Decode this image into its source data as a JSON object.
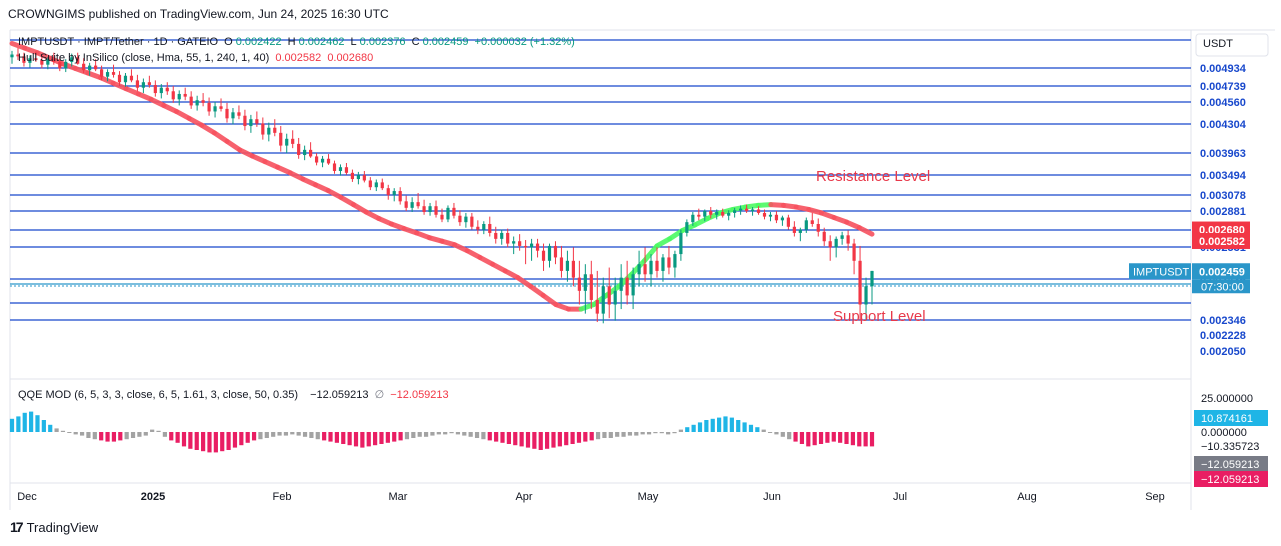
{
  "header": {
    "published_by": "CROWNGIMS published on TradingView.com, Jun 24, 2025 16:30 UTC"
  },
  "footer": {
    "brand": "TradingView",
    "mark": "17"
  },
  "legend": {
    "symbol": "IMPTUSDT · IMPT/Tether · 1D · GATEIO",
    "o_label": "O",
    "o_value": "0.002422",
    "h_label": "H",
    "h_value": "0.002462",
    "l_label": "L",
    "l_value": "0.002376",
    "c_label": "C",
    "c_value": "0.002459",
    "change": "+0.000032 (+1.32%)",
    "hull_label": "Hull Suite by InSilico (close, Hma, 55, 1, 240, 1, 40)",
    "hull_v1": "0.002582",
    "hull_v2": "0.002680",
    "qqe_label": "QQE MOD (6, 5, 3, 3, close, 6, 5, 1.61, 3, close, 50, 0.35)",
    "qqe_v1": "−12.059213",
    "qqe_sep": "∅",
    "qqe_v2": "−12.059213"
  },
  "colors": {
    "level_line": "#1848cc",
    "candle_up": "#089981",
    "candle_down": "#f23645",
    "hull_up": "#4cfa63",
    "hull_down": "#f7525f",
    "annotation": "#e8394a",
    "qqe_blue": "#1fb5e6",
    "qqe_grey": "#a3a3a3",
    "qqe_pink": "#e91e63",
    "current_price_tag": "#2a96c9"
  },
  "chart_data": {
    "type": "candlestick",
    "symbol": "IMPTUSDT",
    "currency_label": "USDT",
    "price_axis_labels": [
      "0.004934",
      "0.004739",
      "0.004560",
      "0.004304",
      "0.003963",
      "0.003494",
      "0.003078",
      "0.002881",
      "0.002675",
      "0.002531",
      "0.002436",
      "0.002346",
      "0.002228",
      "0.002050"
    ],
    "price_axis_tags": [
      {
        "value": "0.002680",
        "color": "#f23645"
      },
      {
        "value": "0.002582",
        "color": "#f23645"
      },
      {
        "value": "0.002459",
        "color": "#2a96c9",
        "symbol": "IMPTUSDT",
        "countdown": "07:30:00"
      }
    ],
    "horizontal_levels": [
      0.004934,
      0.004739,
      0.00456,
      0.004304,
      0.003963,
      0.003494,
      0.003078,
      0.002881,
      0.002675,
      0.002531,
      0.002436,
      0.002346,
      0.002228,
      0.00205
    ],
    "annotations": [
      {
        "text": "Resistance Level"
      },
      {
        "text": "Support Level"
      }
    ],
    "x_labels": [
      "Dec",
      "2025",
      "Feb",
      "Mar",
      "Apr",
      "May",
      "Jun",
      "Jul",
      "Aug",
      "Sep"
    ],
    "candles": [
      [
        0.00505,
        0.00512,
        0.00498,
        0.00508
      ],
      [
        0.00508,
        0.00515,
        0.00502,
        0.00506
      ],
      [
        0.00506,
        0.0051,
        0.00495,
        0.00499
      ],
      [
        0.00499,
        0.00507,
        0.00494,
        0.00504
      ],
      [
        0.00504,
        0.00511,
        0.005,
        0.00502
      ],
      [
        0.00502,
        0.00508,
        0.00493,
        0.00497
      ],
      [
        0.00497,
        0.00505,
        0.00492,
        0.00503
      ],
      [
        0.00503,
        0.0051,
        0.00497,
        0.005
      ],
      [
        0.005,
        0.00506,
        0.0049,
        0.00493
      ],
      [
        0.00493,
        0.00503,
        0.00489,
        0.005
      ],
      [
        0.005,
        0.00509,
        0.00495,
        0.00505
      ],
      [
        0.00505,
        0.0051,
        0.00497,
        0.00498
      ],
      [
        0.00498,
        0.00504,
        0.00488,
        0.00491
      ],
      [
        0.00491,
        0.00499,
        0.00485,
        0.00496
      ],
      [
        0.00496,
        0.00503,
        0.0049,
        0.00492
      ],
      [
        0.00492,
        0.00496,
        0.0048,
        0.00484
      ],
      [
        0.00484,
        0.00492,
        0.00479,
        0.00489
      ],
      [
        0.00489,
        0.00497,
        0.00483,
        0.00486
      ],
      [
        0.00486,
        0.0049,
        0.00474,
        0.00478
      ],
      [
        0.00478,
        0.00488,
        0.00473,
        0.00485
      ],
      [
        0.00485,
        0.00492,
        0.00478,
        0.0048
      ],
      [
        0.0048,
        0.00486,
        0.00468,
        0.00472
      ],
      [
        0.00472,
        0.00482,
        0.00466,
        0.00478
      ],
      [
        0.00478,
        0.00485,
        0.00472,
        0.00475
      ],
      [
        0.00475,
        0.0048,
        0.00462,
        0.00466
      ],
      [
        0.00466,
        0.00476,
        0.0046,
        0.00472
      ],
      [
        0.00472,
        0.00478,
        0.00464,
        0.00468
      ],
      [
        0.00468,
        0.00474,
        0.00455,
        0.00459
      ],
      [
        0.00459,
        0.00469,
        0.00452,
        0.00465
      ],
      [
        0.00465,
        0.00472,
        0.00458,
        0.00462
      ],
      [
        0.00462,
        0.00468,
        0.00448,
        0.00452
      ],
      [
        0.00452,
        0.00463,
        0.00446,
        0.00458
      ],
      [
        0.00458,
        0.00466,
        0.00451,
        0.00455
      ],
      [
        0.00455,
        0.00461,
        0.0044,
        0.00445
      ],
      [
        0.00445,
        0.00456,
        0.00438,
        0.00451
      ],
      [
        0.00451,
        0.0046,
        0.00445,
        0.00448
      ],
      [
        0.00448,
        0.00455,
        0.00432,
        0.00437
      ],
      [
        0.00437,
        0.00449,
        0.0043,
        0.00444
      ],
      [
        0.00444,
        0.00452,
        0.00436,
        0.0044
      ],
      [
        0.0044,
        0.00447,
        0.00423,
        0.00428
      ],
      [
        0.00428,
        0.00441,
        0.0042,
        0.00436
      ],
      [
        0.00436,
        0.00445,
        0.00427,
        0.00431
      ],
      [
        0.00431,
        0.00438,
        0.00412,
        0.00418
      ],
      [
        0.00418,
        0.00432,
        0.0041,
        0.00426
      ],
      [
        0.00426,
        0.00436,
        0.00416,
        0.0042
      ],
      [
        0.0042,
        0.00428,
        0.00398,
        0.00405
      ],
      [
        0.00405,
        0.00419,
        0.00396,
        0.00413
      ],
      [
        0.00413,
        0.00423,
        0.00402,
        0.00407
      ],
      [
        0.00407,
        0.00414,
        0.00384,
        0.00392
      ],
      [
        0.00392,
        0.00405,
        0.00381,
        0.004
      ],
      [
        0.004,
        0.00409,
        0.00386,
        0.00389
      ],
      [
        0.00389,
        0.00396,
        0.0037,
        0.00376
      ],
      [
        0.00376,
        0.0039,
        0.00366,
        0.00384
      ],
      [
        0.00384,
        0.00394,
        0.00371,
        0.00374
      ],
      [
        0.00374,
        0.0038,
        0.00352,
        0.00358
      ],
      [
        0.00358,
        0.00372,
        0.00348,
        0.00366
      ],
      [
        0.00366,
        0.00375,
        0.0035,
        0.00354
      ],
      [
        0.00354,
        0.00361,
        0.00335,
        0.00341
      ],
      [
        0.00341,
        0.00356,
        0.0033,
        0.00349
      ],
      [
        0.00349,
        0.00358,
        0.00334,
        0.00338
      ],
      [
        0.00338,
        0.00345,
        0.00318,
        0.00324
      ],
      [
        0.00324,
        0.0034,
        0.00316,
        0.00334
      ],
      [
        0.00334,
        0.00342,
        0.00318,
        0.00322
      ],
      [
        0.00322,
        0.00329,
        0.00302,
        0.00308
      ],
      [
        0.00308,
        0.00322,
        0.003,
        0.00316
      ],
      [
        0.00316,
        0.00324,
        0.00296,
        0.003
      ],
      [
        0.003,
        0.00307,
        0.00288,
        0.00292
      ],
      [
        0.00292,
        0.00305,
        0.00287,
        0.00299
      ],
      [
        0.00299,
        0.00312,
        0.00291,
        0.00294
      ],
      [
        0.00294,
        0.00302,
        0.00284,
        0.00287
      ],
      [
        0.00287,
        0.00298,
        0.00283,
        0.00294
      ],
      [
        0.00294,
        0.00301,
        0.00281,
        0.00284
      ],
      [
        0.00284,
        0.00291,
        0.00276,
        0.00279
      ],
      [
        0.00279,
        0.00295,
        0.00276,
        0.00292
      ],
      [
        0.00292,
        0.00298,
        0.0028,
        0.00283
      ],
      [
        0.00283,
        0.00289,
        0.00272,
        0.00276
      ],
      [
        0.00276,
        0.00286,
        0.0027,
        0.00282
      ],
      [
        0.00282,
        0.00286,
        0.00268,
        0.00271
      ],
      [
        0.00271,
        0.00278,
        0.00264,
        0.00268
      ],
      [
        0.00268,
        0.00277,
        0.00264,
        0.00274
      ],
      [
        0.00274,
        0.00282,
        0.00262,
        0.00265
      ],
      [
        0.00265,
        0.00271,
        0.00256,
        0.0026
      ],
      [
        0.0026,
        0.00268,
        0.00255,
        0.00265
      ],
      [
        0.00265,
        0.00269,
        0.00253,
        0.00256
      ],
      [
        0.00256,
        0.00262,
        0.00251,
        0.00258
      ],
      [
        0.00258,
        0.00264,
        0.00252,
        0.00254
      ],
      [
        0.00254,
        0.00259,
        0.00248,
        0.00253
      ],
      [
        0.00253,
        0.0026,
        0.00249,
        0.00256
      ],
      [
        0.00256,
        0.0026,
        0.0025,
        0.00252
      ],
      [
        0.00252,
        0.00256,
        0.00246,
        0.00249
      ],
      [
        0.00249,
        0.00256,
        0.00247,
        0.00254
      ],
      [
        0.00254,
        0.00258,
        0.00248,
        0.0025
      ],
      [
        0.0025,
        0.00254,
        0.00244,
        0.00246
      ],
      [
        0.00246,
        0.00252,
        0.00243,
        0.00249
      ],
      [
        0.00249,
        0.00253,
        0.00242,
        0.00244
      ],
      [
        0.00244,
        0.00249,
        0.00238,
        0.00241
      ],
      [
        0.00241,
        0.00248,
        0.00236,
        0.00245
      ],
      [
        0.00245,
        0.00249,
        0.00237,
        0.00239
      ],
      [
        0.00239,
        0.00246,
        0.00233,
        0.00236
      ],
      [
        0.00236,
        0.00244,
        0.00232,
        0.00242
      ],
      [
        0.00242,
        0.00247,
        0.00235,
        0.00238
      ],
      [
        0.00238,
        0.00244,
        0.00234,
        0.00241
      ],
      [
        0.00241,
        0.00248,
        0.00237,
        0.00244
      ],
      [
        0.00244,
        0.00249,
        0.00238,
        0.0024
      ],
      [
        0.0024,
        0.00247,
        0.00237,
        0.00245
      ],
      [
        0.00245,
        0.00252,
        0.00242,
        0.00248
      ],
      [
        0.00248,
        0.00253,
        0.00243,
        0.00245
      ],
      [
        0.00245,
        0.00251,
        0.00242,
        0.00249
      ],
      [
        0.00249,
        0.00253,
        0.00244,
        0.00246
      ],
      [
        0.00246,
        0.00251,
        0.00243,
        0.0025
      ],
      [
        0.0025,
        0.00254,
        0.00245,
        0.00247
      ],
      [
        0.00247,
        0.00252,
        0.00244,
        0.00251
      ],
      [
        0.00251,
        0.00268,
        0.00249,
        0.00265
      ],
      [
        0.00265,
        0.00279,
        0.00262,
        0.00276
      ],
      [
        0.00276,
        0.00287,
        0.00272,
        0.00284
      ],
      [
        0.00284,
        0.00291,
        0.00278,
        0.00282
      ],
      [
        0.00282,
        0.0029,
        0.00277,
        0.00288
      ],
      [
        0.00288,
        0.00293,
        0.0028,
        0.00284
      ],
      [
        0.00284,
        0.0029,
        0.00279,
        0.00287
      ],
      [
        0.00287,
        0.00291,
        0.00281,
        0.00283
      ],
      [
        0.00283,
        0.00289,
        0.00278,
        0.00286
      ],
      [
        0.00286,
        0.00292,
        0.00281,
        0.00289
      ],
      [
        0.00289,
        0.00295,
        0.00284,
        0.00291
      ],
      [
        0.00291,
        0.00296,
        0.00286,
        0.00288
      ],
      [
        0.00288,
        0.00293,
        0.00283,
        0.0029
      ],
      [
        0.0029,
        0.00294,
        0.00284,
        0.00286
      ],
      [
        0.00286,
        0.0029,
        0.00279,
        0.00282
      ],
      [
        0.00282,
        0.00287,
        0.00277,
        0.00284
      ],
      [
        0.00284,
        0.00288,
        0.00275,
        0.00278
      ],
      [
        0.00278,
        0.00283,
        0.00272,
        0.00281
      ],
      [
        0.00281,
        0.00284,
        0.00268,
        0.00271
      ],
      [
        0.00271,
        0.00277,
        0.00262,
        0.00265
      ],
      [
        0.00265,
        0.0027,
        0.00258,
        0.00268
      ],
      [
        0.00268,
        0.00281,
        0.00265,
        0.00278
      ],
      [
        0.00278,
        0.00286,
        0.00271,
        0.00274
      ],
      [
        0.00274,
        0.0028,
        0.00262,
        0.00266
      ],
      [
        0.00266,
        0.0027,
        0.00254,
        0.00258
      ],
      [
        0.00258,
        0.00263,
        0.00249,
        0.00253
      ],
      [
        0.00253,
        0.00262,
        0.0025,
        0.0026
      ],
      [
        0.0026,
        0.00266,
        0.00255,
        0.00263
      ],
      [
        0.00263,
        0.00267,
        0.00252,
        0.00256
      ],
      [
        0.00256,
        0.0026,
        0.00245,
        0.00249
      ],
      [
        0.00249,
        0.00254,
        0.00234,
        0.00238
      ],
      [
        0.00238,
        0.00244,
        0.00234,
        0.00242
      ],
      [
        0.00242,
        0.00246,
        0.00238,
        0.00246
      ]
    ],
    "hull": [
      0.0052,
      0.00515,
      0.0051,
      0.00504,
      0.00498,
      0.00493,
      0.00488,
      0.00483,
      0.00477,
      0.00471,
      0.00465,
      0.00459,
      0.00452,
      0.00445,
      0.00437,
      0.00429,
      0.0042,
      0.0041,
      0.004,
      0.0039,
      0.00378,
      0.00366,
      0.00354,
      0.00341,
      0.00329,
      0.00317,
      0.00305,
      0.00296,
      0.00287,
      0.0028,
      0.00274,
      0.00269,
      0.00265,
      0.00261,
      0.00258,
      0.00255,
      0.00252,
      0.0025,
      0.00248,
      0.00246,
      0.00244,
      0.00242,
      0.0024,
      0.00238,
      0.00237,
      0.00237,
      0.00238,
      0.0024,
      0.00242,
      0.00245,
      0.00249,
      0.00254,
      0.0026,
      0.00267,
      0.00273,
      0.0028,
      0.00286,
      0.0029,
      0.00293,
      0.00295,
      0.00296,
      0.00295,
      0.00293,
      0.0029,
      0.00286,
      0.00281,
      0.00276,
      0.0027,
      0.00264
    ],
    "qqe": [
      11,
      13,
      16,
      17,
      14,
      10,
      6,
      3,
      1,
      0,
      -2,
      -3,
      -5,
      -6,
      -7,
      -8,
      -8,
      -7,
      -6,
      -5,
      -4,
      -3,
      2,
      1,
      -4,
      -7,
      -9,
      -12,
      -14,
      -15,
      -16,
      -17,
      -17,
      -16,
      -15,
      -13,
      -11,
      -9,
      -7,
      -6,
      -5,
      -4,
      -3,
      -3,
      -2,
      -3,
      -4,
      -5,
      -6,
      -7,
      -8,
      -9,
      -10,
      -11,
      -12,
      -13,
      -12,
      -11,
      -10,
      -9,
      -8,
      -7,
      -6,
      -5,
      -4,
      -4,
      -3,
      -2,
      -2,
      -1,
      -2,
      -3,
      -4,
      -5,
      -6,
      -7,
      -8,
      -9,
      -10,
      -11,
      -12,
      -13,
      -14,
      -15,
      -14,
      -13,
      -12,
      -11,
      -10,
      -9,
      -8,
      -7,
      -6,
      -5,
      -5,
      -4,
      -4,
      -3,
      -3,
      -2,
      -2,
      -1,
      -1,
      -2,
      -1,
      2,
      4,
      6,
      8,
      10,
      11,
      12,
      13,
      12,
      10,
      8,
      6,
      4,
      2,
      0,
      -2,
      -4,
      -6,
      -8,
      -10,
      -12,
      -11,
      -10,
      -9,
      -8,
      -9,
      -10,
      -11,
      -12,
      -12,
      -12
    ],
    "qqe_axis_labels": [
      "25.000000",
      "0.000000",
      "−10.335723"
    ],
    "qqe_tags": [
      {
        "value": "10.874161",
        "color": "#1fb5e6"
      },
      {
        "value": "−12.059213",
        "color": "#787b86"
      },
      {
        "value": "−12.059213",
        "color": "#e91e63"
      }
    ]
  }
}
